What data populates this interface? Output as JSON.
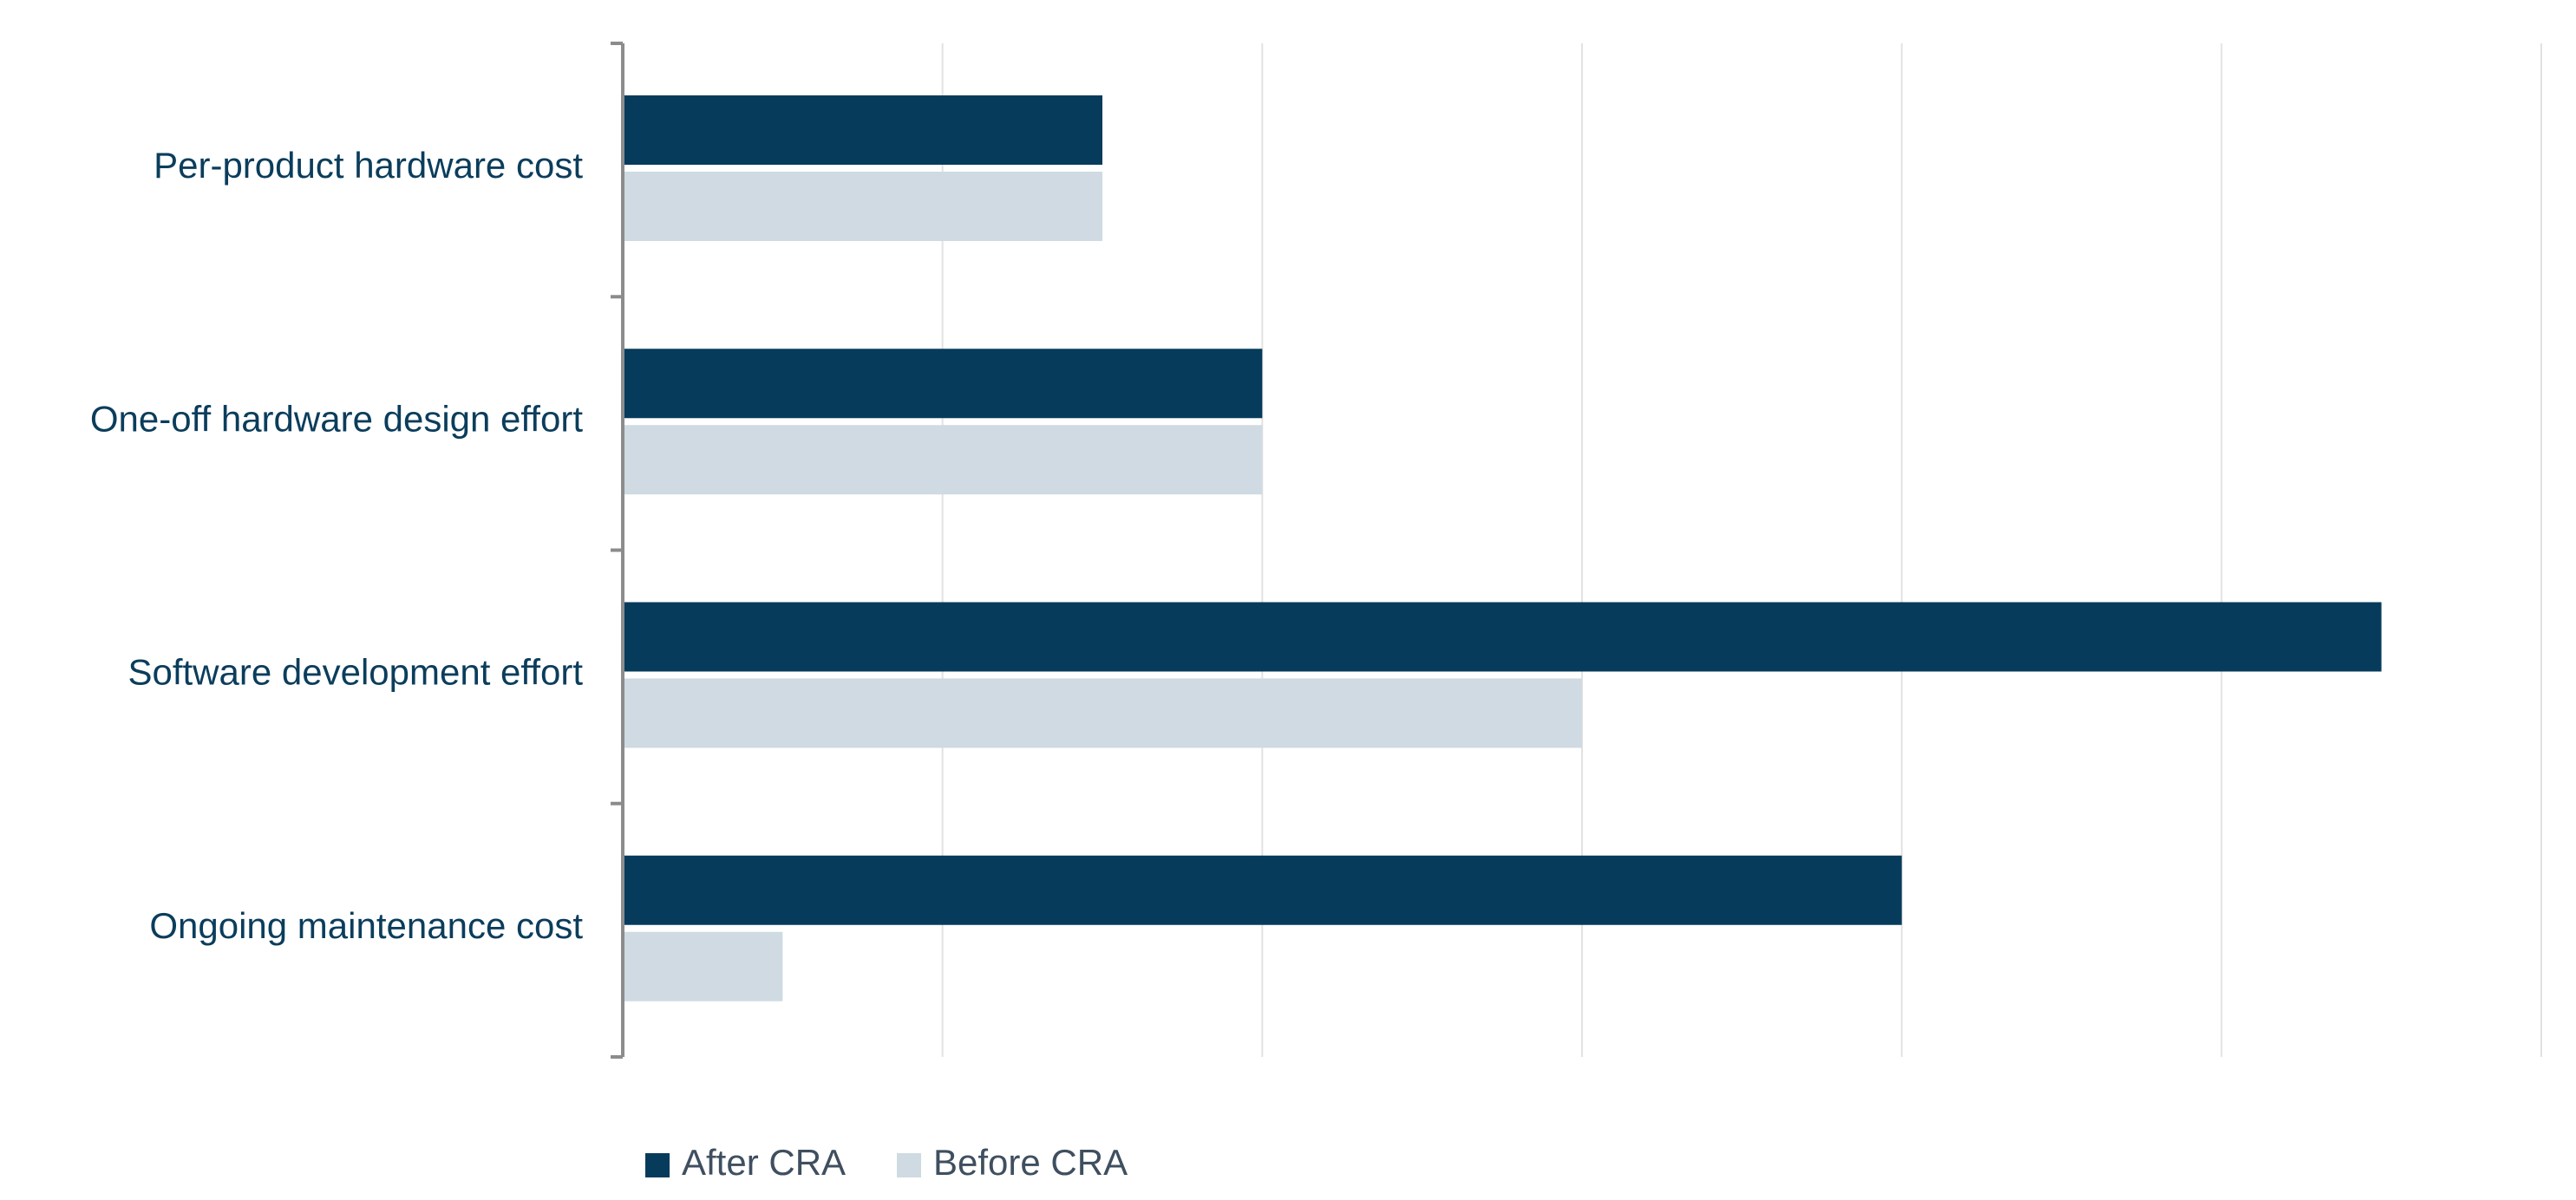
{
  "chart_data": {
    "type": "bar",
    "orientation": "horizontal",
    "categories": [
      "Per-product hardware cost",
      "One-off hardware design effort",
      "Software development effort",
      "Ongoing maintenance cost"
    ],
    "series": [
      {
        "name": "After CRA",
        "color": "#073b5c",
        "values": [
          1.5,
          2.0,
          5.5,
          4.0
        ]
      },
      {
        "name": "Before CRA",
        "color": "#cfdae2",
        "values": [
          1.5,
          2.0,
          3.0,
          0.5
        ]
      }
    ],
    "xlim": [
      0,
      6
    ],
    "x_gridlines": true,
    "x_tick_labels_shown": false,
    "legend_position": "bottom-left"
  }
}
